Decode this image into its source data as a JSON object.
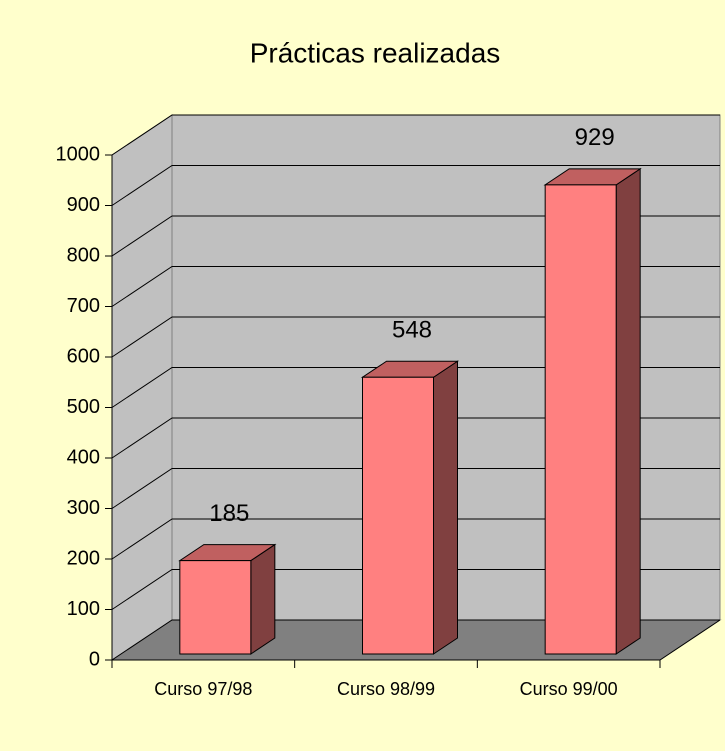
{
  "chart_data": {
    "type": "bar3d",
    "title": "Prácticas realizadas",
    "categories": [
      "Curso 97/98",
      "Curso 98/99",
      "Curso 99/00"
    ],
    "values": [
      185,
      548,
      929
    ],
    "color": "#ff8080",
    "ylim": [
      0,
      1000
    ],
    "yticks": [
      0,
      100,
      200,
      300,
      400,
      500,
      600,
      700,
      800,
      900,
      1000
    ],
    "grid": true
  }
}
